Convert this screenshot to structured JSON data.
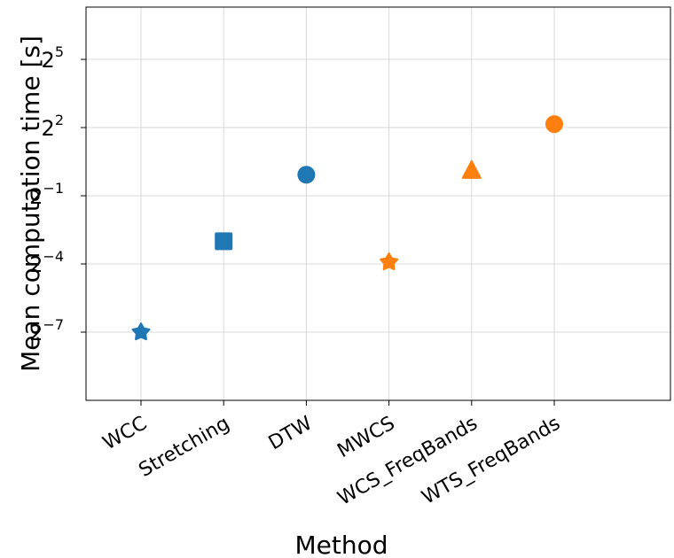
{
  "chart_data": {
    "type": "scatter",
    "title": "",
    "xlabel": "Method",
    "ylabel": "Mean computation time [s]",
    "yscale": "log2",
    "ylim_exponent": [
      -10,
      7.3
    ],
    "grid": true,
    "legend": "none",
    "categories": [
      "WCC",
      "Stretching",
      "DTW",
      "MWCS",
      "WCS_FreqBands",
      "WTS_FreqBands"
    ],
    "yticks": [
      {
        "base": "2",
        "exp": "5",
        "exponent": 5
      },
      {
        "base": "2",
        "exp": "2",
        "exponent": 2
      },
      {
        "base": "2",
        "exp": "−1",
        "exponent": -1
      },
      {
        "base": "2",
        "exp": "−4",
        "exponent": -4
      },
      {
        "base": "2",
        "exp": "−7",
        "exponent": -7
      }
    ],
    "points": [
      {
        "category": "WCC",
        "y": 0.0078,
        "marker": "pentagon",
        "color": "#1f77b4"
      },
      {
        "category": "Stretching",
        "y": 0.125,
        "marker": "square",
        "color": "#1f77b4"
      },
      {
        "category": "DTW",
        "y": 0.95,
        "marker": "circle",
        "color": "#1f77b4"
      },
      {
        "category": "MWCS",
        "y": 0.066,
        "marker": "pentagon",
        "color": "#ff7f0e"
      },
      {
        "category": "WCS_FreqBands",
        "y": 1.07,
        "marker": "triangle",
        "color": "#ff7f0e"
      },
      {
        "category": "WTS_FreqBands",
        "y": 4.45,
        "marker": "circle",
        "color": "#ff7f0e"
      }
    ],
    "point_order_note_free": true,
    "colors": {
      "blue": "#1f77b4",
      "orange": "#ff7f0e",
      "grid": "#d9d9d9",
      "axis": "#000000"
    }
  }
}
